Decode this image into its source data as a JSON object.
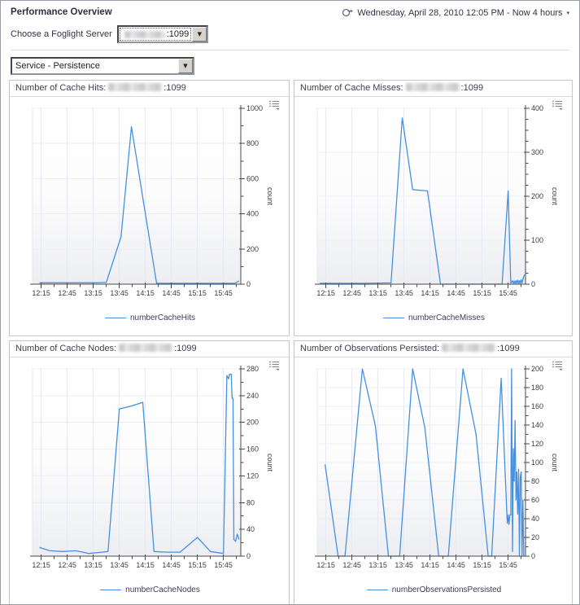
{
  "header": {
    "title": "Performance Overview",
    "time_range": "Wednesday, April 28, 2010 12:05 PM - Now 4 hours",
    "server_label": "Choose a Foglight Server",
    "server_port": ":1099",
    "service_value": "Service - Persistence"
  },
  "colors": {
    "line": "#4590e2",
    "axis": "#4a4a4a",
    "tick_text": "#3d3d3d",
    "grid_v": "#e8eaf3",
    "grid_h": "#edeff5",
    "plot_border": "#e2e4ed",
    "panel_border": "#c6c6c6"
  },
  "chart_data": [
    {
      "type": "line",
      "title_prefix": "Number of Cache Hits:",
      "server": ":1099",
      "legend": "numberCacheHits",
      "ylabel": "count",
      "ylim": [
        0,
        1000
      ],
      "y_major": 200,
      "y_minor": 100,
      "x_ticks": [
        "12:15",
        "12:45",
        "13:15",
        "13:45",
        "14:15",
        "14:45",
        "15:15",
        "15:45"
      ],
      "x_range": [
        "12:05",
        "16:05"
      ],
      "points": [
        [
          "12:13",
          8
        ],
        [
          "12:30",
          8
        ],
        [
          "12:45",
          8
        ],
        [
          "13:00",
          8
        ],
        [
          "13:15",
          8
        ],
        [
          "13:30",
          10
        ],
        [
          "13:47",
          270
        ],
        [
          "13:59",
          895
        ],
        [
          "14:15",
          400
        ],
        [
          "14:28",
          5
        ],
        [
          "14:45",
          5
        ],
        [
          "15:00",
          5
        ],
        [
          "15:15",
          5
        ],
        [
          "15:30",
          5
        ],
        [
          "15:45",
          5
        ],
        [
          "15:58",
          5
        ],
        [
          "16:03",
          18
        ]
      ]
    },
    {
      "type": "line",
      "title_prefix": "Number of Cache Misses:",
      "server": ":1099",
      "legend": "numberCacheMisses",
      "ylabel": "count",
      "ylim": [
        0,
        400
      ],
      "y_major": 100,
      "y_minor": 25,
      "x_ticks": [
        "12:15",
        "12:45",
        "13:15",
        "13:45",
        "14:15",
        "14:45",
        "15:15",
        "15:45"
      ],
      "x_range": [
        "12:05",
        "16:05"
      ],
      "points": [
        [
          "12:08",
          2
        ],
        [
          "12:30",
          2
        ],
        [
          "13:00",
          2
        ],
        [
          "13:30",
          3
        ],
        [
          "13:43",
          378
        ],
        [
          "13:55",
          215
        ],
        [
          "14:12",
          212
        ],
        [
          "14:27",
          0
        ],
        [
          "14:45",
          0
        ],
        [
          "15:15",
          0
        ],
        [
          "15:38",
          0
        ],
        [
          "15:45",
          212
        ],
        [
          "15:48",
          2
        ],
        [
          "15:50",
          8
        ],
        [
          "15:51",
          2
        ],
        [
          "15:52",
          7
        ],
        [
          "15:53",
          2
        ],
        [
          "15:54",
          8
        ],
        [
          "15:55",
          2
        ],
        [
          "15:56",
          9
        ],
        [
          "15:57",
          2
        ],
        [
          "15:58",
          8
        ],
        [
          "15:59",
          2
        ],
        [
          "16:00",
          10
        ],
        [
          "16:01",
          3
        ],
        [
          "16:03",
          18
        ],
        [
          "16:04",
          22
        ]
      ]
    },
    {
      "type": "line",
      "title_prefix": "Number of Cache Nodes:",
      "server": ":1099",
      "legend": "numberCacheNodes",
      "ylabel": "count",
      "ylim": [
        0,
        280
      ],
      "y_major": 40,
      "y_minor": 20,
      "x_ticks": [
        "12:15",
        "12:45",
        "13:15",
        "13:45",
        "14:15",
        "14:45",
        "15:15",
        "15:45"
      ],
      "x_range": [
        "12:05",
        "16:05"
      ],
      "points": [
        [
          "12:13",
          13
        ],
        [
          "12:25",
          8
        ],
        [
          "12:40",
          7
        ],
        [
          "12:55",
          8
        ],
        [
          "13:10",
          4
        ],
        [
          "13:25",
          6
        ],
        [
          "13:32",
          7
        ],
        [
          "13:45",
          220
        ],
        [
          "14:00",
          225
        ],
        [
          "14:12",
          230
        ],
        [
          "14:25",
          7
        ],
        [
          "14:40",
          6
        ],
        [
          "14:55",
          6
        ],
        [
          "15:15",
          28
        ],
        [
          "15:30",
          7
        ],
        [
          "15:45",
          4
        ],
        [
          "15:49",
          270
        ],
        [
          "15:51",
          265
        ],
        [
          "15:52",
          272
        ],
        [
          "15:54",
          272
        ],
        [
          "15:55",
          236
        ],
        [
          "15:56",
          236
        ],
        [
          "15:57",
          25
        ],
        [
          "15:59",
          22
        ],
        [
          "16:01",
          33
        ],
        [
          "16:03",
          25
        ]
      ]
    },
    {
      "type": "line",
      "title_prefix": "Number of Observations Persisted:",
      "server": ":1099",
      "legend": "numberObservationsPersisted",
      "ylabel": "count",
      "ylim": [
        0,
        200
      ],
      "y_major": 20,
      "y_minor": 10,
      "x_ticks": [
        "12:15",
        "12:45",
        "13:15",
        "13:45",
        "14:15",
        "14:45",
        "15:15",
        "15:45"
      ],
      "x_range": [
        "12:05",
        "16:05"
      ],
      "points": [
        [
          "12:14",
          98
        ],
        [
          "12:29",
          0
        ],
        [
          "12:37",
          0
        ],
        [
          "12:57",
          200
        ],
        [
          "13:12",
          139
        ],
        [
          "13:27",
          0
        ],
        [
          "13:40",
          0
        ],
        [
          "13:55",
          200
        ],
        [
          "14:09",
          137
        ],
        [
          "14:25",
          0
        ],
        [
          "14:36",
          0
        ],
        [
          "14:53",
          200
        ],
        [
          "15:08",
          130
        ],
        [
          "15:22",
          0
        ],
        [
          "15:26",
          0
        ],
        [
          "15:37",
          190
        ],
        [
          "15:44",
          35
        ],
        [
          "15:45",
          44
        ],
        [
          "15:46",
          34
        ],
        [
          "15:47",
          44
        ],
        [
          "15:48",
          44
        ],
        [
          "15:49",
          200
        ],
        [
          "15:50",
          5
        ],
        [
          "15:51",
          115
        ],
        [
          "15:52",
          80
        ],
        [
          "15:53",
          145
        ],
        [
          "15:54",
          60
        ],
        [
          "15:55",
          90
        ],
        [
          "15:56",
          45
        ],
        [
          "15:57",
          93
        ],
        [
          "15:58",
          0
        ],
        [
          "15:59",
          85
        ],
        [
          "16:00",
          90
        ],
        [
          "16:01",
          0
        ],
        [
          "16:02",
          60
        ],
        [
          "16:03",
          0
        ]
      ]
    }
  ]
}
